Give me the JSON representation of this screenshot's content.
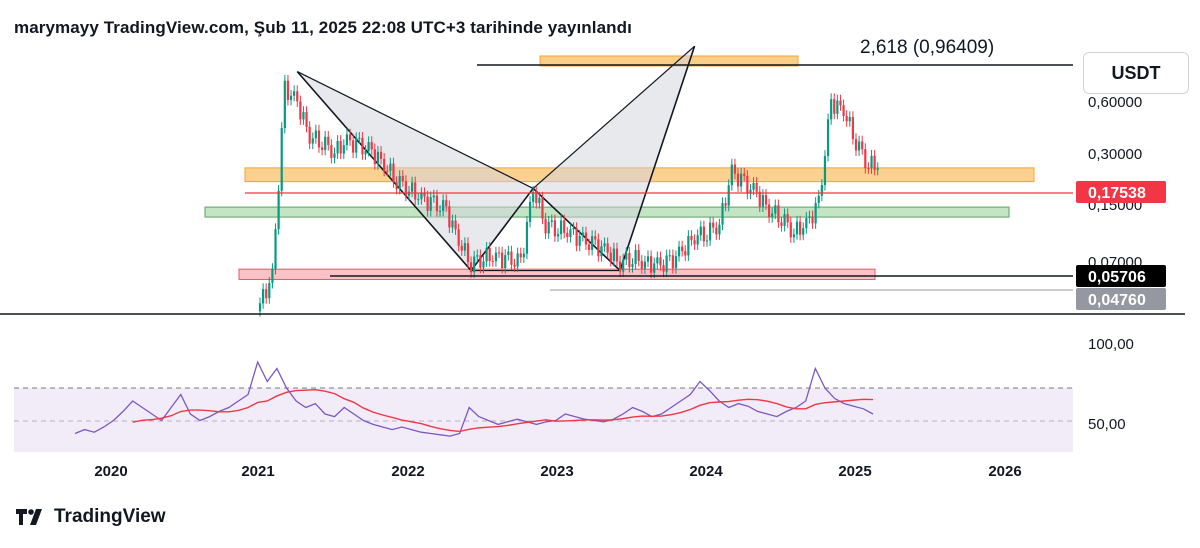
{
  "header": {
    "text": "marymayy TradingView.com, Şub 11, 2025 22:08 UTC+3 tarihinde yayınlandı"
  },
  "footer": {
    "brand": "TradingView"
  },
  "symbol": {
    "label": "USDT"
  },
  "fib_label": "2,618 (0,96409)",
  "price_axis": {
    "ticks": [
      "0,60000",
      "0,30000",
      "0,15000",
      "0,07000"
    ],
    "badges": [
      {
        "label": "0,17538",
        "bg": "#f23645",
        "fg": "#ffffff"
      },
      {
        "label": "0,05706",
        "bg": "#000000",
        "fg": "#ffffff"
      },
      {
        "label": "0,04760",
        "bg": "#9598a1",
        "fg": "#ffffff"
      }
    ]
  },
  "rsi_axis": {
    "ticks": [
      "100,00",
      "50,00"
    ]
  },
  "time_axis": {
    "labels": [
      "2020",
      "2021",
      "2022",
      "2023",
      "2024",
      "2025",
      "2026"
    ]
  },
  "colors": {
    "up": "#089981",
    "down": "#f23645",
    "zone_orange": "#f7b955",
    "zone_green": "#a5d6a7",
    "zone_red": "#f7a1a8",
    "rsi_line": "#7e57c2",
    "rsi_ma": "#f23645",
    "rsi_band": "#ede7f6"
  },
  "chart_data": {
    "type": "candlestick",
    "scale": "log",
    "ylim": [
      0.03,
      1.3
    ],
    "x_range": [
      "2019-07",
      "2026-05"
    ],
    "ohlc_monthly_approx": [
      {
        "t": "2021-01",
        "c": 0.035
      },
      {
        "t": "2021-02",
        "c": 0.05
      },
      {
        "t": "2021-03",
        "c": 0.6
      },
      {
        "t": "2021-04",
        "c": 0.5
      },
      {
        "t": "2021-05",
        "c": 0.32
      },
      {
        "t": "2021-06",
        "c": 0.3
      },
      {
        "t": "2021-07",
        "c": 0.26
      },
      {
        "t": "2021-08",
        "c": 0.3
      },
      {
        "t": "2021-09",
        "c": 0.28
      },
      {
        "t": "2021-10",
        "c": 0.26
      },
      {
        "t": "2021-11",
        "c": 0.22
      },
      {
        "t": "2021-12",
        "c": 0.18
      },
      {
        "t": "2022-01",
        "c": 0.16
      },
      {
        "t": "2022-02",
        "c": 0.14
      },
      {
        "t": "2022-03",
        "c": 0.13
      },
      {
        "t": "2022-04",
        "c": 0.12
      },
      {
        "t": "2022-05",
        "c": 0.08
      },
      {
        "t": "2022-06",
        "c": 0.06
      },
      {
        "t": "2022-07",
        "c": 0.065
      },
      {
        "t": "2022-08",
        "c": 0.065
      },
      {
        "t": "2022-09",
        "c": 0.062
      },
      {
        "t": "2022-10",
        "c": 0.06
      },
      {
        "t": "2022-11",
        "c": 0.16
      },
      {
        "t": "2022-12",
        "c": 0.1
      },
      {
        "t": "2023-01",
        "c": 0.095
      },
      {
        "t": "2023-02",
        "c": 0.09
      },
      {
        "t": "2023-03",
        "c": 0.08
      },
      {
        "t": "2023-04",
        "c": 0.075
      },
      {
        "t": "2023-05",
        "c": 0.07
      },
      {
        "t": "2023-06",
        "c": 0.06
      },
      {
        "t": "2023-07",
        "c": 0.065
      },
      {
        "t": "2023-08",
        "c": 0.06
      },
      {
        "t": "2023-09",
        "c": 0.058
      },
      {
        "t": "2023-10",
        "c": 0.06
      },
      {
        "t": "2023-11",
        "c": 0.07
      },
      {
        "t": "2023-12",
        "c": 0.085
      },
      {
        "t": "2024-01",
        "c": 0.09
      },
      {
        "t": "2024-02",
        "c": 0.1
      },
      {
        "t": "2024-03",
        "c": 0.2
      },
      {
        "t": "2024-04",
        "c": 0.17
      },
      {
        "t": "2024-05",
        "c": 0.15
      },
      {
        "t": "2024-06",
        "c": 0.12
      },
      {
        "t": "2024-07",
        "c": 0.11
      },
      {
        "t": "2024-08",
        "c": 0.09
      },
      {
        "t": "2024-09",
        "c": 0.1
      },
      {
        "t": "2024-10",
        "c": 0.13
      },
      {
        "t": "2024-11",
        "c": 0.5
      },
      {
        "t": "2024-12",
        "c": 0.45
      },
      {
        "t": "2025-01",
        "c": 0.3
      },
      {
        "t": "2025-02",
        "c": 0.22
      }
    ],
    "harmonic_pattern_points": [
      {
        "t": "2021-04",
        "p": 0.75
      },
      {
        "t": "2022-06",
        "p": 0.054
      },
      {
        "t": "2022-11",
        "p": 0.16
      },
      {
        "t": "2023-06",
        "p": 0.054
      },
      {
        "t": "2023-12",
        "p": 1.05
      }
    ],
    "zones": [
      {
        "name": "orange",
        "top": 0.21,
        "bottom": 0.175
      },
      {
        "name": "green",
        "top": 0.125,
        "bottom": 0.112
      },
      {
        "name": "red",
        "top": 0.055,
        "bottom": 0.048
      }
    ],
    "rsi": {
      "ylim": [
        30,
        100
      ],
      "band": [
        30,
        70
      ],
      "values": [
        35,
        38,
        36,
        40,
        45,
        52,
        60,
        55,
        50,
        45,
        55,
        65,
        50,
        45,
        48,
        52,
        55,
        60,
        65,
        90,
        75,
        85,
        70,
        60,
        55,
        58,
        50,
        48,
        55,
        50,
        45,
        42,
        40,
        38,
        40,
        38,
        36,
        35,
        34,
        33,
        35,
        55,
        48,
        45,
        42,
        44,
        46,
        44,
        42,
        44,
        45,
        50,
        48,
        46,
        45,
        44,
        46,
        50,
        55,
        52,
        48,
        50,
        55,
        60,
        65,
        75,
        68,
        60,
        55,
        58,
        56,
        52,
        50,
        48,
        52,
        55,
        60,
        85,
        70,
        62,
        58,
        56,
        54,
        50
      ]
    }
  }
}
